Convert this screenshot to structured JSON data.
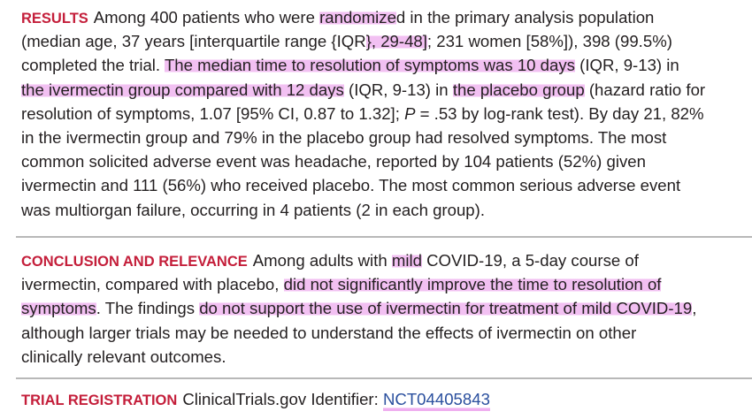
{
  "results": {
    "heading": "RESULTS",
    "lines": [
      [
        "Among 400 patients who were ",
        "randomize",
        "d in the primary analysis population"
      ],
      [
        "(median age, 37 years [interquartile range {IQR",
        "}, 29-48]",
        "; 231 women [58%]), 398 (99.5%)"
      ],
      [
        "completed the trial. ",
        "The median time to resolution of symptoms was 10 days",
        " (IQR, 9-13) in"
      ],
      [
        "the ivermectin group compared with 12 days",
        " (IQR, 9-13) in ",
        "the placebo group",
        " (hazard ratio for"
      ],
      [
        "resolution of symptoms, 1.07 [95% CI, 0.87 to 1.32]; ",
        "P",
        " = .53 by log-rank test). By day 21, 82%"
      ],
      [
        "in the ivermectin group and 79% in the placebo group had resolved symptoms. The most"
      ],
      [
        "common solicited adverse event was headache, reported by 104 patients (52%) given"
      ],
      [
        "ivermectin and 111 (56%) who received placebo. The most common serious adverse event"
      ],
      [
        "was multiorgan failure, occurring in 4 patients (2 in each group)."
      ]
    ]
  },
  "conclusion": {
    "heading": "CONCLUSION AND RELEVANCE",
    "lines": [
      [
        "Among adults with ",
        "mild",
        " COVID-19, a 5-day course of"
      ],
      [
        "ivermectin, compared with placebo, ",
        "did not significantly improve the time to resolution of"
      ],
      [
        "symptoms",
        ". The findings ",
        "do not support the use of ivermectin for treatment of mild COVID-19",
        ","
      ],
      [
        "although larger trials may be needed to understand the effects of ivermectin on other"
      ],
      [
        "clinically relevant outcomes."
      ]
    ]
  },
  "registration": {
    "heading": "TRIAL REGISTRATION",
    "text": "ClinicalTrials.gov Identifier: ",
    "link": "NCT04405843"
  }
}
